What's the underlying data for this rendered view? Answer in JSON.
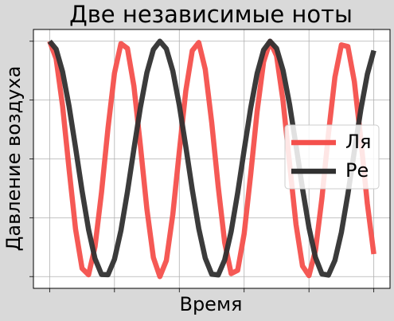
{
  "chart_data": {
    "type": "line",
    "title": "Две независимые ноты",
    "xlabel": "Время",
    "ylabel": "Давление воздуха",
    "x": [
      0,
      0.0002,
      0.0004,
      0.0006,
      0.0008,
      0.001,
      0.0012,
      0.0014,
      0.0016,
      0.0018,
      0.002,
      0.0022,
      0.0024,
      0.0026,
      0.0028,
      0.003,
      0.0032,
      0.0034,
      0.0036,
      0.0038,
      0.004,
      0.0042,
      0.0044,
      0.0046,
      0.0048,
      0.005,
      0.0052,
      0.0054,
      0.0056,
      0.0058,
      0.006,
      0.0062,
      0.0064,
      0.0066,
      0.0068,
      0.007,
      0.0072,
      0.0074,
      0.0076,
      0.0078,
      0.008,
      0.0082,
      0.0084,
      0.0086,
      0.0088,
      0.009,
      0.0092,
      0.0094,
      0.0096,
      0.0098,
      0.01
    ],
    "series": [
      {
        "name": "Ля",
        "color": "#f4504c",
        "values": [
          1,
          0.851,
          0.448,
          -0.088,
          -0.598,
          -0.93,
          -0.985,
          -0.746,
          -0.285,
          0.261,
          0.729,
          0.98,
          0.939,
          0.618,
          0.113,
          -0.426,
          -0.838,
          -1,
          -0.864,
          -0.471,
          0.063,
          0.578,
          0.92,
          0.989,
          0.762,
          0.309,
          -0.236,
          -0.711,
          -0.975,
          -0.947,
          -0.637,
          -0.138,
          0.403,
          0.824,
          0.999,
          0.876,
          0.493,
          -0.038,
          -0.557,
          -0.91,
          -0.992,
          -0.778,
          -0.333,
          0.212,
          0.694,
          0.969,
          0.955,
          0.657,
          0.163,
          -0.38,
          -0.809
        ]
      },
      {
        "name": "Ре",
        "color": "#303030",
        "values": [
          1,
          0.933,
          0.74,
          0.447,
          0.095,
          -0.271,
          -0.6,
          -0.848,
          -0.982,
          -0.984,
          -0.853,
          -0.608,
          -0.28,
          0.085,
          0.438,
          0.733,
          0.929,
          1,
          0.936,
          0.747,
          0.456,
          0.105,
          -0.261,
          -0.592,
          -0.843,
          -0.98,
          -0.986,
          -0.858,
          -0.616,
          -0.29,
          0.075,
          0.429,
          0.726,
          0.925,
          1,
          0.94,
          0.753,
          0.465,
          0.114,
          -0.252,
          -0.584,
          -0.837,
          -0.978,
          -0.987,
          -0.863,
          -0.624,
          -0.3,
          0.065,
          0.42,
          0.719,
          0.921
        ]
      }
    ],
    "xlim": [
      -0.0005,
      0.0105
    ],
    "xticks": [
      0,
      0.002,
      0.004,
      0.006,
      0.008,
      0.01
    ],
    "ylim": [
      -1.1,
      1.1
    ],
    "yticks": [
      -1,
      -0.5,
      0,
      0.5,
      1
    ],
    "grid": true,
    "legend": "right"
  }
}
